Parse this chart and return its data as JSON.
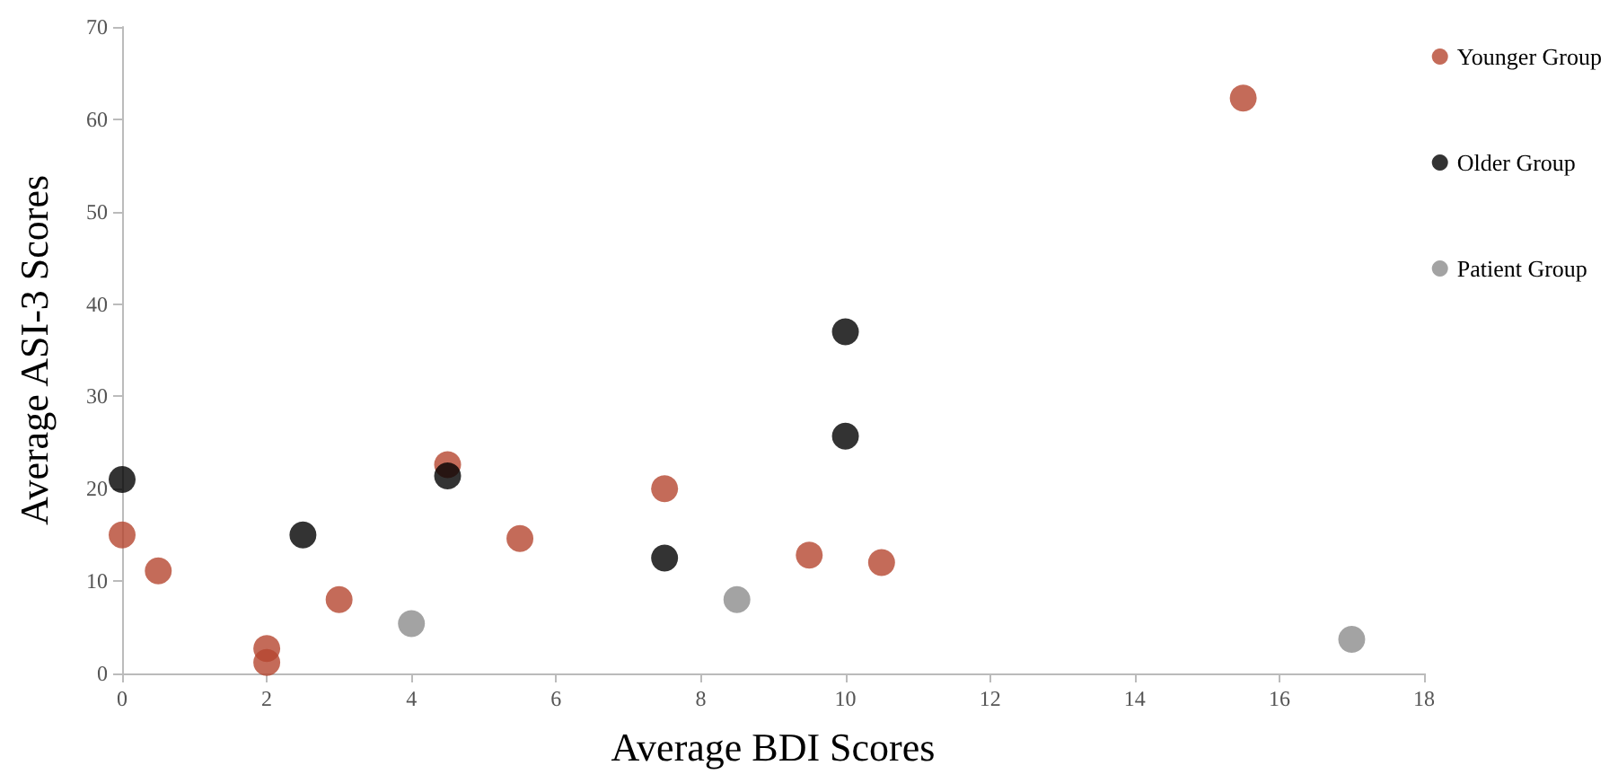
{
  "chart_data": {
    "type": "scatter",
    "xlabel": "Average BDI Scores",
    "ylabel": "Average ASI-3 Scores",
    "xlim": [
      0,
      18
    ],
    "xticks": [
      0,
      2,
      4,
      6,
      8,
      10,
      12,
      14,
      16,
      18
    ],
    "ylim": [
      0,
      70
    ],
    "yticks": [
      0,
      10,
      20,
      30,
      40,
      50,
      60,
      70
    ],
    "grid": false,
    "legend": "right",
    "marker": "circle",
    "series": [
      {
        "name": "Younger Group",
        "color": "#b5462f",
        "x": [
          0,
          0.5,
          2,
          2,
          3,
          4.5,
          5.5,
          7.5,
          9.5,
          10.5,
          15.5
        ],
        "values": [
          15,
          11.1,
          2.7,
          1.2,
          8,
          22.6,
          14.6,
          20,
          12.8,
          12,
          62.3
        ]
      },
      {
        "name": "Older Group",
        "color": "#000000",
        "x": [
          0,
          2.5,
          4.5,
          7.5,
          10,
          10
        ],
        "values": [
          21,
          15,
          21.4,
          12.5,
          37,
          25.7
        ]
      },
      {
        "name": "Patient Group",
        "color": "#8c8c8c",
        "x": [
          4,
          8.5,
          17
        ],
        "values": [
          5.4,
          8,
          3.7
        ]
      }
    ]
  }
}
